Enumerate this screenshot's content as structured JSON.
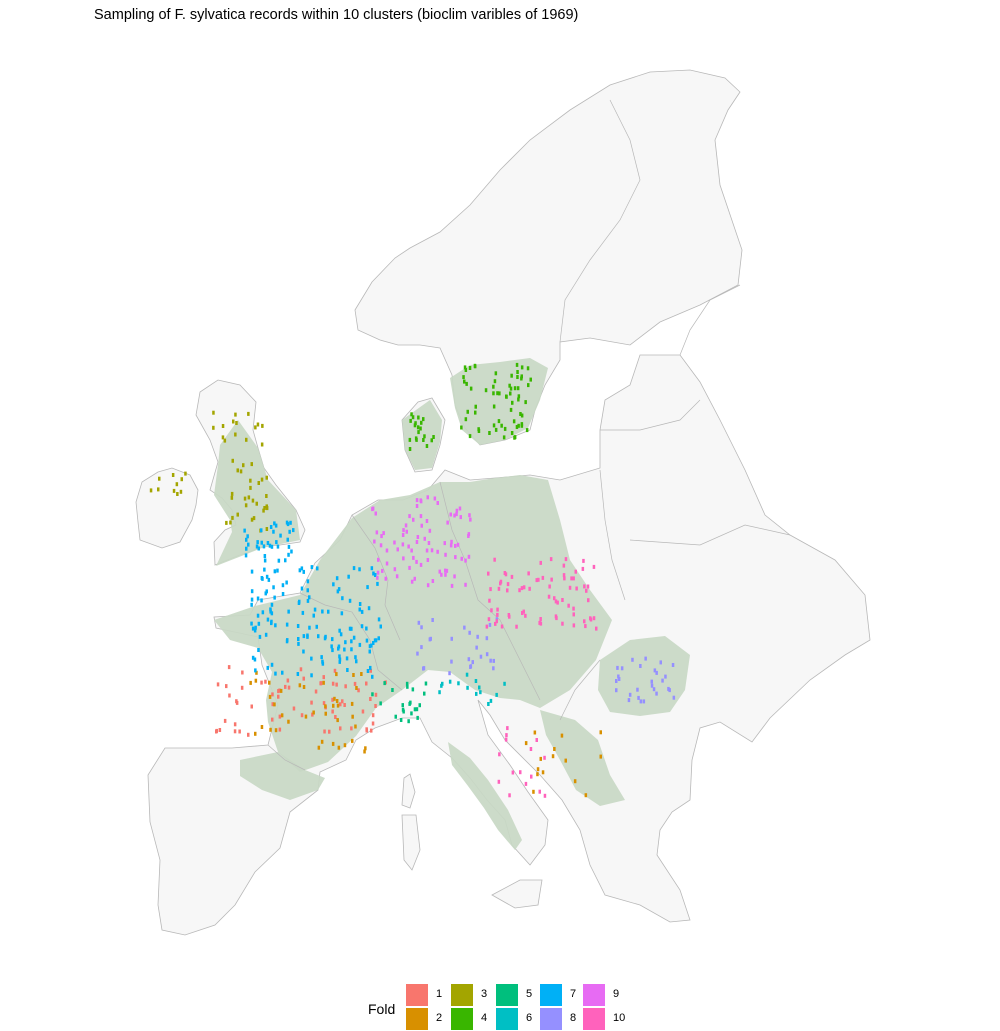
{
  "title": "Sampling of F. sylvatica records within 10 clusters (bioclim varibles of 1969)",
  "map": {
    "land_color": "#f7f7f7",
    "border_color": "#b8b8b8",
    "range_color": "#c8d8c4"
  },
  "legend": {
    "title": "Fold",
    "items": [
      {
        "label": "1",
        "color": "#f8766d"
      },
      {
        "label": "2",
        "color": "#d89000"
      },
      {
        "label": "3",
        "color": "#a3a500"
      },
      {
        "label": "4",
        "color": "#39b600"
      },
      {
        "label": "5",
        "color": "#00bf7d"
      },
      {
        "label": "6",
        "color": "#00bfc4"
      },
      {
        "label": "7",
        "color": "#00b0f6"
      },
      {
        "label": "8",
        "color": "#9590ff"
      },
      {
        "label": "9",
        "color": "#e76bf3"
      },
      {
        "label": "10",
        "color": "#ff62bc"
      }
    ]
  }
}
